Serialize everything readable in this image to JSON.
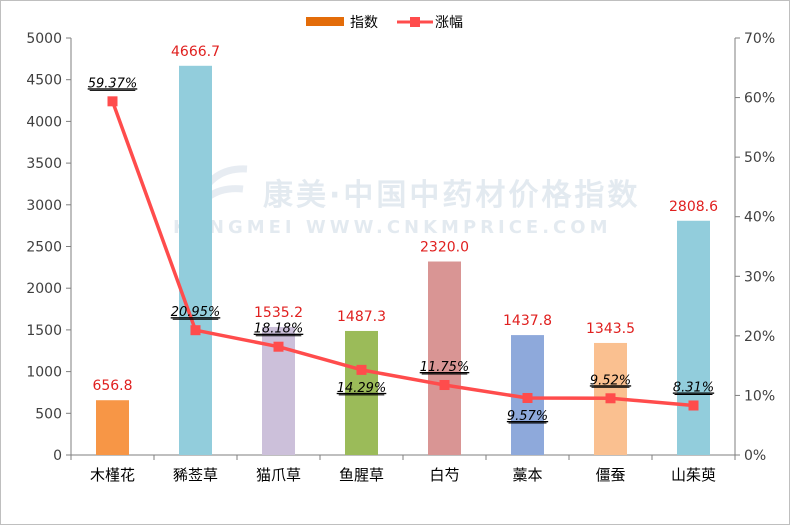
{
  "watermark": {
    "line1": "康美·中国中药材价格指数",
    "line2": "KANGMEI WWW.CNKMPRICE.COM"
  },
  "legend": {
    "index_label": "指数",
    "change_label": "涨幅",
    "index_color": "#E36C09",
    "change_color": "#FF4C4C"
  },
  "chart_data": {
    "type": "bar",
    "categories": [
      "木槿花",
      "豨莶草",
      "猫爪草",
      "鱼腥草",
      "白芍",
      "藁本",
      "僵蚕",
      "山茱萸"
    ],
    "series": [
      {
        "name": "指数",
        "axis": "left",
        "values": [
          656.8,
          4666.7,
          1535.2,
          1487.3,
          2320.0,
          1437.8,
          1343.5,
          2808.6
        ],
        "value_labels": [
          "656.8",
          "4666.7",
          "1535.2",
          "1487.3",
          "2320.0",
          "1437.8",
          "1343.5",
          "2808.6"
        ],
        "colors": [
          "#F79646",
          "#92CDDC",
          "#CCC0DA",
          "#9BBB59",
          "#D99594",
          "#8EA9DB",
          "#FAC090",
          "#92CDDC"
        ]
      },
      {
        "name": "涨幅",
        "axis": "right",
        "type": "line",
        "values": [
          59.37,
          20.95,
          18.18,
          14.29,
          11.75,
          9.57,
          9.52,
          8.31
        ],
        "value_labels": [
          "59.37%",
          "20.95%",
          "18.18%",
          "14.29%",
          "11.75%",
          "9.57%",
          "9.52%",
          "8.31%"
        ],
        "color": "#FF4C4C"
      }
    ],
    "y_left": {
      "min": 0,
      "max": 5000,
      "ticks": [
        "0",
        "500",
        "1000",
        "1500",
        "2000",
        "2500",
        "3000",
        "3500",
        "4000",
        "4500",
        "5000"
      ]
    },
    "y_right": {
      "min": 0,
      "max": 70,
      "ticks": [
        "0%",
        "10%",
        "20%",
        "30%",
        "40%",
        "50%",
        "60%",
        "70%"
      ]
    },
    "legend_position": "top-center",
    "grid": false
  }
}
